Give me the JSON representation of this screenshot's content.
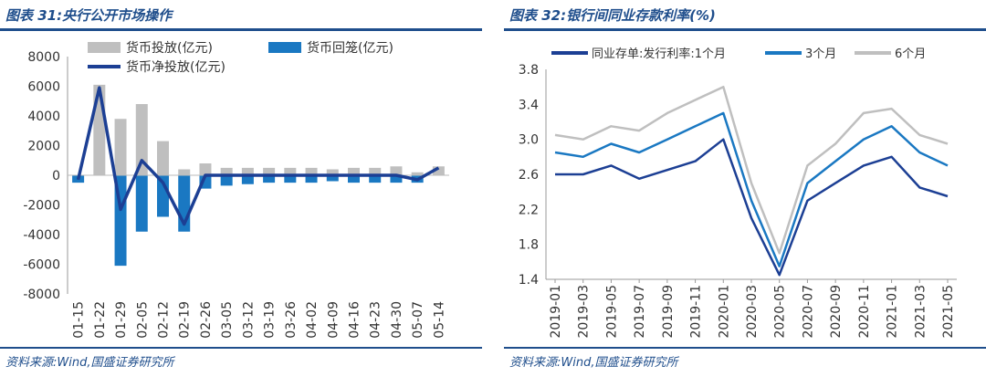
{
  "left": {
    "title": "图表 31:央行公开市场操作",
    "source": "资料来源:Wind,国盛证券研究所",
    "chart_data": {
      "type": "bar",
      "categories": [
        "01-15",
        "01-22",
        "01-29",
        "02-05",
        "02-12",
        "02-19",
        "02-26",
        "03-05",
        "03-12",
        "03-19",
        "03-26",
        "04-02",
        "04-09",
        "04-16",
        "04-23",
        "04-30",
        "05-07",
        "05-14"
      ],
      "ylim": [
        -8000,
        8000
      ],
      "yticks": [
        -8000,
        -6000,
        -4000,
        -2000,
        0,
        2000,
        4000,
        6000,
        8000
      ],
      "legend_placement": "top",
      "series": [
        {
          "name": "货币投放(亿元)",
          "type": "bar",
          "color": "#bfbfbf",
          "values": [
            0,
            6100,
            3800,
            4800,
            2300,
            400,
            800,
            500,
            500,
            500,
            500,
            500,
            400,
            500,
            500,
            600,
            200,
            600
          ]
        },
        {
          "name": "货币回笼(亿元)",
          "type": "bar",
          "color": "#1a78c2",
          "values": [
            -500,
            0,
            -6100,
            -3800,
            -2800,
            -3800,
            -900,
            -700,
            -600,
            -500,
            -500,
            -500,
            -400,
            -500,
            -500,
            -500,
            -500,
            0
          ]
        },
        {
          "name": "货币净投放(亿元)",
          "type": "line",
          "color": "#1c3f94",
          "values": [
            -300,
            5900,
            -2300,
            1000,
            -500,
            -3300,
            0,
            0,
            0,
            0,
            0,
            0,
            0,
            0,
            0,
            0,
            -300,
            500
          ]
        }
      ]
    }
  },
  "right": {
    "title": "图表 32:银行间同业存款利率(%)",
    "source": "资料来源:Wind,国盛证券研究所",
    "chart_data": {
      "type": "line",
      "categories": [
        "2019-01",
        "2019-03",
        "2019-05",
        "2019-07",
        "2019-09",
        "2019-11",
        "2020-01",
        "2020-03",
        "2020-05",
        "2020-07",
        "2020-09",
        "2020-11",
        "2021-01",
        "2021-03",
        "2021-05"
      ],
      "ylim": [
        1.4,
        3.8
      ],
      "yticks": [
        1.4,
        1.8,
        2.2,
        2.6,
        3.0,
        3.4,
        3.8
      ],
      "legend_placement": "top",
      "series": [
        {
          "name": "同业存单:发行利率:1个月",
          "color": "#1c3f94",
          "values": [
            2.6,
            2.6,
            2.7,
            2.55,
            2.65,
            2.75,
            3.0,
            2.1,
            1.45,
            2.3,
            2.5,
            2.7,
            2.8,
            2.45,
            2.35
          ]
        },
        {
          "name": "3个月",
          "color": "#1a78c2",
          "values": [
            2.85,
            2.8,
            2.95,
            2.85,
            3.0,
            3.15,
            3.3,
            2.3,
            1.55,
            2.5,
            2.75,
            3.0,
            3.15,
            2.85,
            2.7
          ]
        },
        {
          "name": "6个月",
          "color": "#bfbfbf",
          "values": [
            3.05,
            3.0,
            3.15,
            3.1,
            3.3,
            3.45,
            3.6,
            2.5,
            1.7,
            2.7,
            2.95,
            3.3,
            3.35,
            3.05,
            2.95
          ]
        }
      ]
    }
  }
}
